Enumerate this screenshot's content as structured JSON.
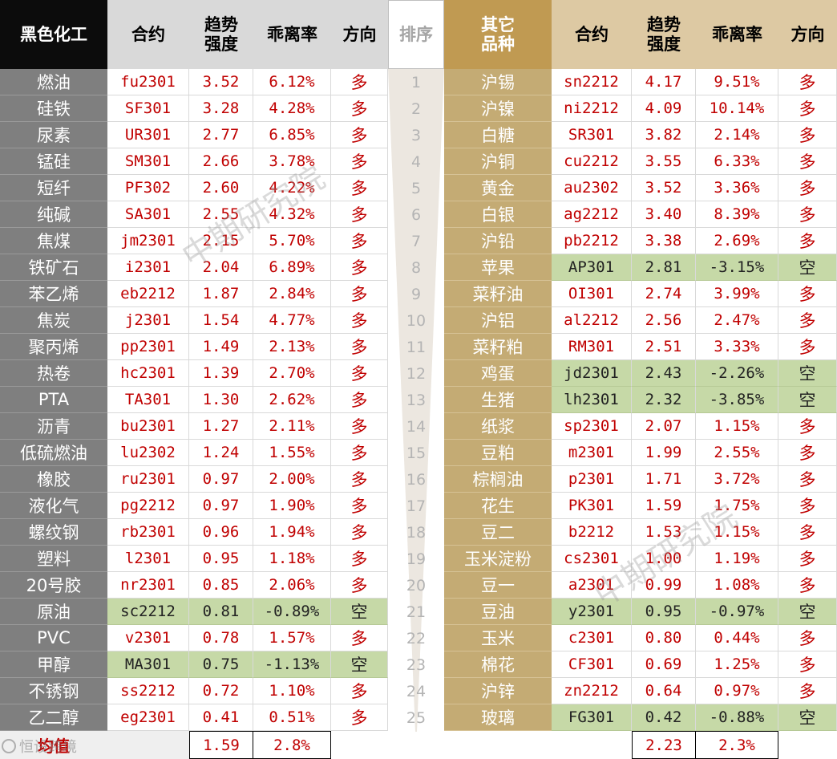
{
  "left": {
    "headers": {
      "category": "黑色化工",
      "contract": "合约",
      "strength": "趋势\n强度",
      "deviation": "乖离率",
      "direction": "方向"
    },
    "rows": [
      {
        "name": "燃油",
        "contract": "fu2301",
        "strength": "3.52",
        "deviation": "6.12%",
        "direction": "多",
        "short": false
      },
      {
        "name": "硅铁",
        "contract": "SF301",
        "strength": "3.28",
        "deviation": "4.28%",
        "direction": "多",
        "short": false
      },
      {
        "name": "尿素",
        "contract": "UR301",
        "strength": "2.77",
        "deviation": "6.85%",
        "direction": "多",
        "short": false
      },
      {
        "name": "锰硅",
        "contract": "SM301",
        "strength": "2.66",
        "deviation": "3.78%",
        "direction": "多",
        "short": false
      },
      {
        "name": "短纤",
        "contract": "PF302",
        "strength": "2.60",
        "deviation": "4.22%",
        "direction": "多",
        "short": false
      },
      {
        "name": "纯碱",
        "contract": "SA301",
        "strength": "2.55",
        "deviation": "4.32%",
        "direction": "多",
        "short": false
      },
      {
        "name": "焦煤",
        "contract": "jm2301",
        "strength": "2.15",
        "deviation": "5.70%",
        "direction": "多",
        "short": false
      },
      {
        "name": "铁矿石",
        "contract": "i2301",
        "strength": "2.04",
        "deviation": "6.89%",
        "direction": "多",
        "short": false
      },
      {
        "name": "苯乙烯",
        "contract": "eb2212",
        "strength": "1.87",
        "deviation": "2.84%",
        "direction": "多",
        "short": false
      },
      {
        "name": "焦炭",
        "contract": "j2301",
        "strength": "1.54",
        "deviation": "4.77%",
        "direction": "多",
        "short": false
      },
      {
        "name": "聚丙烯",
        "contract": "pp2301",
        "strength": "1.49",
        "deviation": "2.13%",
        "direction": "多",
        "short": false
      },
      {
        "name": "热卷",
        "contract": "hc2301",
        "strength": "1.39",
        "deviation": "2.70%",
        "direction": "多",
        "short": false
      },
      {
        "name": "PTA",
        "contract": "TA301",
        "strength": "1.30",
        "deviation": "2.62%",
        "direction": "多",
        "short": false
      },
      {
        "name": "沥青",
        "contract": "bu2301",
        "strength": "1.27",
        "deviation": "2.11%",
        "direction": "多",
        "short": false
      },
      {
        "name": "低硫燃油",
        "contract": "lu2302",
        "strength": "1.24",
        "deviation": "1.55%",
        "direction": "多",
        "short": false
      },
      {
        "name": "橡胶",
        "contract": "ru2301",
        "strength": "0.97",
        "deviation": "2.00%",
        "direction": "多",
        "short": false
      },
      {
        "name": "液化气",
        "contract": "pg2212",
        "strength": "0.97",
        "deviation": "1.90%",
        "direction": "多",
        "short": false
      },
      {
        "name": "螺纹钢",
        "contract": "rb2301",
        "strength": "0.96",
        "deviation": "1.94%",
        "direction": "多",
        "short": false
      },
      {
        "name": "塑料",
        "contract": "l2301",
        "strength": "0.95",
        "deviation": "1.18%",
        "direction": "多",
        "short": false
      },
      {
        "name": "20号胶",
        "contract": "nr2301",
        "strength": "0.85",
        "deviation": "2.06%",
        "direction": "多",
        "short": false
      },
      {
        "name": "原油",
        "contract": "sc2212",
        "strength": "0.81",
        "deviation": "-0.89%",
        "direction": "空",
        "short": true
      },
      {
        "name": "PVC",
        "contract": "v2301",
        "strength": "0.78",
        "deviation": "1.57%",
        "direction": "多",
        "short": false
      },
      {
        "name": "甲醇",
        "contract": "MA301",
        "strength": "0.75",
        "deviation": "-1.13%",
        "direction": "空",
        "short": true
      },
      {
        "name": "不锈钢",
        "contract": "ss2212",
        "strength": "0.72",
        "deviation": "1.10%",
        "direction": "多",
        "short": false
      },
      {
        "name": "乙二醇",
        "contract": "eg2301",
        "strength": "0.41",
        "deviation": "0.51%",
        "direction": "多",
        "short": false
      }
    ],
    "average": {
      "label": "均值",
      "strength": "1.59",
      "deviation": "2.8%"
    }
  },
  "rank": {
    "header": "排序",
    "values": [
      "1",
      "2",
      "3",
      "4",
      "5",
      "6",
      "7",
      "8",
      "9",
      "10",
      "11",
      "12",
      "13",
      "14",
      "15",
      "16",
      "17",
      "18",
      "19",
      "20",
      "21",
      "22",
      "23",
      "24",
      "25"
    ]
  },
  "right": {
    "headers": {
      "category": "其它\n品种",
      "contract": "合约",
      "strength": "趋势\n强度",
      "deviation": "乖离率",
      "direction": "方向"
    },
    "rows": [
      {
        "name": "沪锡",
        "contract": "sn2212",
        "strength": "4.17",
        "deviation": "9.51%",
        "direction": "多",
        "short": false
      },
      {
        "name": "沪镍",
        "contract": "ni2212",
        "strength": "4.09",
        "deviation": "10.14%",
        "direction": "多",
        "short": false
      },
      {
        "name": "白糖",
        "contract": "SR301",
        "strength": "3.82",
        "deviation": "2.14%",
        "direction": "多",
        "short": false
      },
      {
        "name": "沪铜",
        "contract": "cu2212",
        "strength": "3.55",
        "deviation": "6.33%",
        "direction": "多",
        "short": false
      },
      {
        "name": "黄金",
        "contract": "au2302",
        "strength": "3.52",
        "deviation": "3.36%",
        "direction": "多",
        "short": false
      },
      {
        "name": "白银",
        "contract": "ag2212",
        "strength": "3.40",
        "deviation": "8.39%",
        "direction": "多",
        "short": false
      },
      {
        "name": "沪铅",
        "contract": "pb2212",
        "strength": "3.38",
        "deviation": "2.69%",
        "direction": "多",
        "short": false
      },
      {
        "name": "苹果",
        "contract": "AP301",
        "strength": "2.81",
        "deviation": "-3.15%",
        "direction": "空",
        "short": true
      },
      {
        "name": "菜籽油",
        "contract": "OI301",
        "strength": "2.74",
        "deviation": "3.99%",
        "direction": "多",
        "short": false
      },
      {
        "name": "沪铝",
        "contract": "al2212",
        "strength": "2.56",
        "deviation": "2.47%",
        "direction": "多",
        "short": false
      },
      {
        "name": "菜籽粕",
        "contract": "RM301",
        "strength": "2.51",
        "deviation": "3.33%",
        "direction": "多",
        "short": false
      },
      {
        "name": "鸡蛋",
        "contract": "jd2301",
        "strength": "2.43",
        "deviation": "-2.26%",
        "direction": "空",
        "short": true
      },
      {
        "name": "生猪",
        "contract": "lh2301",
        "strength": "2.32",
        "deviation": "-3.85%",
        "direction": "空",
        "short": true
      },
      {
        "name": "纸浆",
        "contract": "sp2301",
        "strength": "2.07",
        "deviation": "1.15%",
        "direction": "多",
        "short": false
      },
      {
        "name": "豆粕",
        "contract": "m2301",
        "strength": "1.99",
        "deviation": "2.55%",
        "direction": "多",
        "short": false
      },
      {
        "name": "棕榈油",
        "contract": "p2301",
        "strength": "1.71",
        "deviation": "3.72%",
        "direction": "多",
        "short": false
      },
      {
        "name": "花生",
        "contract": "PK301",
        "strength": "1.59",
        "deviation": "1.75%",
        "direction": "多",
        "short": false
      },
      {
        "name": "豆二",
        "contract": "b2212",
        "strength": "1.53",
        "deviation": "1.15%",
        "direction": "多",
        "short": false
      },
      {
        "name": "玉米淀粉",
        "contract": "cs2301",
        "strength": "1.00",
        "deviation": "1.19%",
        "direction": "多",
        "short": false
      },
      {
        "name": "豆一",
        "contract": "a2301",
        "strength": "0.99",
        "deviation": "1.08%",
        "direction": "多",
        "short": false
      },
      {
        "name": "豆油",
        "contract": "y2301",
        "strength": "0.95",
        "deviation": "-0.97%",
        "direction": "空",
        "short": true
      },
      {
        "name": "玉米",
        "contract": "c2301",
        "strength": "0.80",
        "deviation": "0.44%",
        "direction": "多",
        "short": false
      },
      {
        "name": "棉花",
        "contract": "CF301",
        "strength": "0.69",
        "deviation": "1.25%",
        "direction": "多",
        "short": false
      },
      {
        "name": "沪锌",
        "contract": "zn2212",
        "strength": "0.64",
        "deviation": "0.97%",
        "direction": "多",
        "short": false
      },
      {
        "name": "玻璃",
        "contract": "FG301",
        "strength": "0.42",
        "deviation": "-0.88%",
        "direction": "空",
        "short": true
      }
    ],
    "average": {
      "strength": "2.23",
      "deviation": "2.3%"
    }
  },
  "watermarks": [
    "中期研究院",
    "中期研究院"
  ],
  "corner_logo": "恒设跨境",
  "colors": {
    "header_black": "#0c0c0c",
    "header_gold": "#c09a52",
    "left_category_bg": "#7f7f7f",
    "right_category_bg": "#c4ab74",
    "value_red": "#c00000",
    "short_green": "#c6d9a7"
  }
}
